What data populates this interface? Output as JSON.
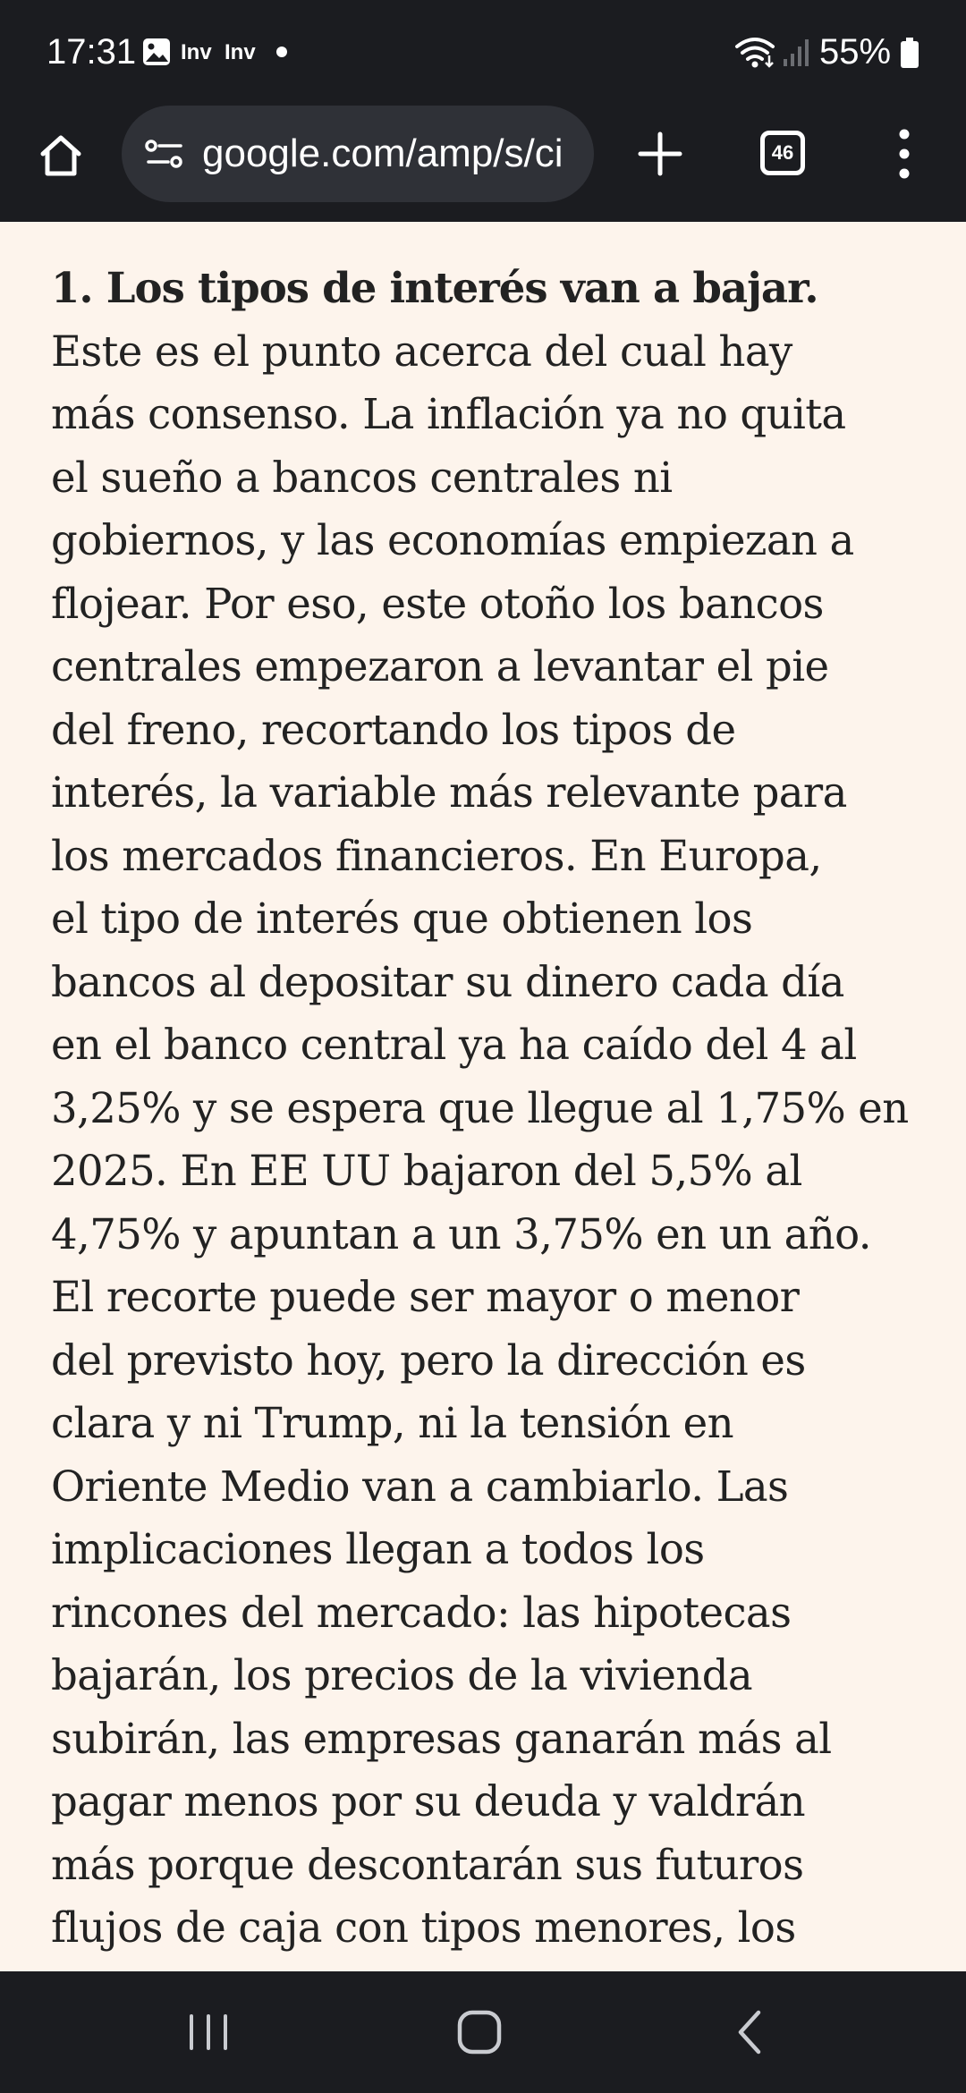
{
  "status_bar": {
    "time": "17:31",
    "notification_labels": [
      "Inv",
      "Inv"
    ],
    "battery": "55%",
    "icons": [
      "gallery-icon",
      "wifi-icon",
      "signal-icon",
      "battery-icon"
    ]
  },
  "toolbar": {
    "url": "google.com/amp/s/ci",
    "tab_count": "46",
    "icons": [
      "home-icon",
      "site-info-icon",
      "plus-icon",
      "tab-switcher-icon",
      "more-vert-icon"
    ]
  },
  "article": {
    "heading": "1. Los tipos de interés van a bajar.",
    "lines": [
      "Este es el punto acerca del cual hay",
      "más consenso. La inflación ya no quita",
      "el sueño a bancos centrales ni",
      "gobiernos, y las economías empiezan a",
      "flojear. Por eso, este otoño los bancos",
      "centrales empezaron a levantar el pie",
      "del freno, recortando los tipos de",
      "interés, la variable más relevante para",
      "los mercados financieros. En Europa,",
      "el tipo de interés que obtienen los",
      "bancos al depositar su dinero cada día",
      "en el banco central ya ha caído del 4 al",
      "3,25% y se espera que llegue al 1,75% en",
      "2025. En EE UU bajaron del 5,5% al",
      "4,75% y apuntan a un 3,75% en un año.",
      "El recorte puede ser mayor o menor",
      "del previsto hoy, pero la dirección es",
      "clara y ni Trump, ni la tensión en",
      "Oriente Medio van a cambiarlo. Las",
      "implicaciones llegan a todos los",
      "rincones del mercado: las hipotecas",
      "bajarán, los precios de la vivienda",
      "subirán, las empresas ganarán más al",
      "pagar menos por su deuda y valdrán",
      "más porque descontarán sus futuros",
      "flujos de caja con tipos menores, los"
    ]
  },
  "nav_bar": {
    "icons": [
      "recents-icon",
      "home-icon",
      "back-icon"
    ]
  },
  "colors": {
    "system_bar": "#1b1c20",
    "url_bar": "#2f3137",
    "page_background": "#fdf4ec",
    "text": "#222222"
  }
}
